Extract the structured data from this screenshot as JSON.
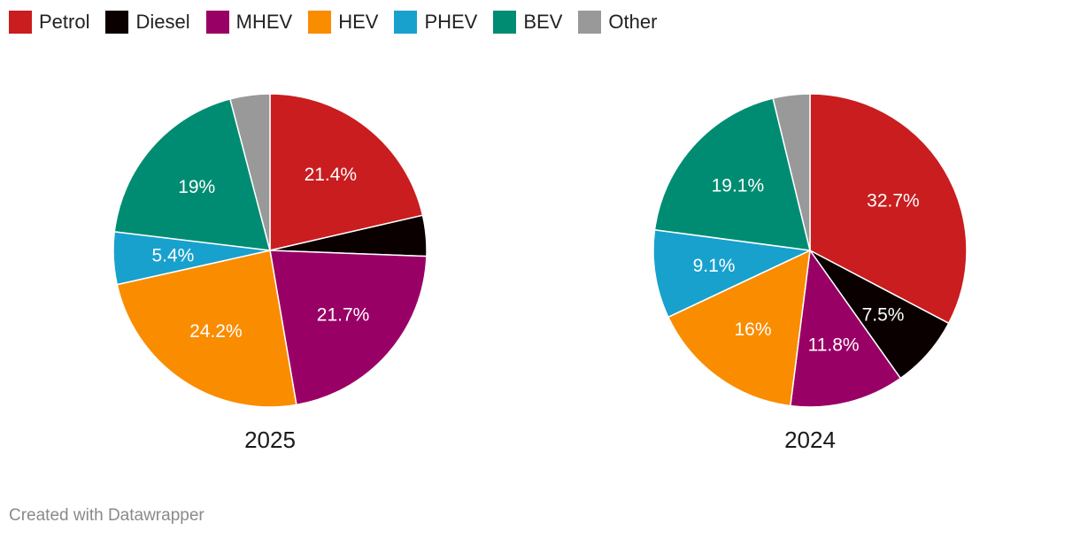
{
  "legend": [
    {
      "label": "Petrol",
      "color": "#c91d1f"
    },
    {
      "label": "Diesel",
      "color": "#0a0000"
    },
    {
      "label": "MHEV",
      "color": "#990066"
    },
    {
      "label": "HEV",
      "color": "#fa8c00"
    },
    {
      "label": "PHEV",
      "color": "#18a1cd"
    },
    {
      "label": "BEV",
      "color": "#008c72"
    },
    {
      "label": "Other",
      "color": "#999999"
    }
  ],
  "chart_data": [
    {
      "type": "pie",
      "title": "2025",
      "categories": [
        "Petrol",
        "Diesel",
        "MHEV",
        "HEV",
        "PHEV",
        "BEV",
        "Other"
      ],
      "values": [
        21.4,
        4.2,
        21.7,
        24.2,
        5.4,
        19.0,
        4.1
      ],
      "labels": [
        "21.4%",
        "",
        "21.7%",
        "24.2%",
        "5.4%",
        "19%",
        ""
      ]
    },
    {
      "type": "pie",
      "title": "2024",
      "categories": [
        "Petrol",
        "Diesel",
        "MHEV",
        "HEV",
        "PHEV",
        "BEV",
        "Other"
      ],
      "values": [
        32.7,
        7.5,
        11.8,
        16.0,
        9.1,
        19.1,
        3.8
      ],
      "labels": [
        "32.7%",
        "7.5%",
        "11.8%",
        "16%",
        "9.1%",
        "19.1%",
        ""
      ]
    }
  ],
  "credit": "Created with Datawrapper"
}
